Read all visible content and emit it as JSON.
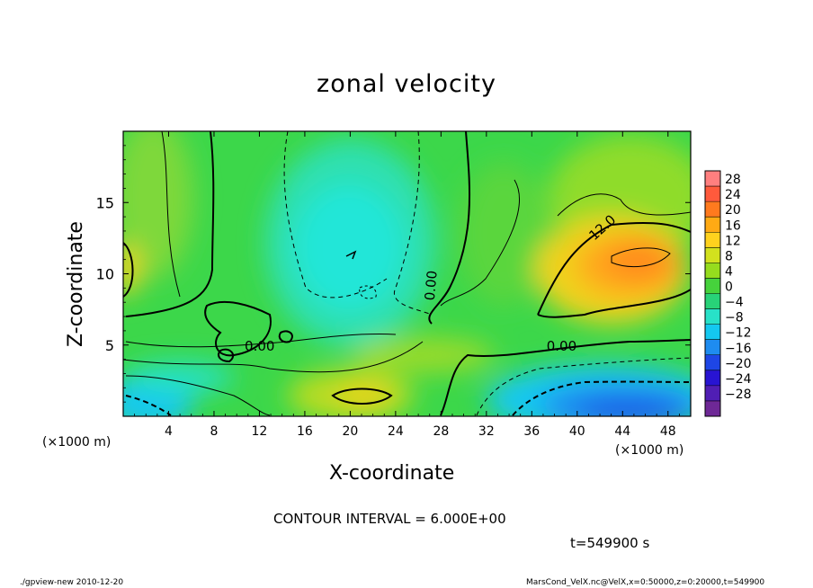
{
  "chart_data": {
    "type": "heatmap",
    "title": "zonal velocity",
    "xlabel": "X-coordinate",
    "ylabel": "Z-coordinate",
    "x_unit": "(×1000 m)",
    "xlim": [
      0,
      50
    ],
    "ylim": [
      0,
      20
    ],
    "x_ticks": [
      "4",
      "8",
      "12",
      "16",
      "20",
      "24",
      "28",
      "32",
      "36",
      "40",
      "44",
      "48"
    ],
    "x_tick_values": [
      4,
      8,
      12,
      16,
      20,
      24,
      28,
      32,
      36,
      40,
      44,
      48
    ],
    "y_ticks": [
      "5",
      "10",
      "15"
    ],
    "y_tick_values": [
      5,
      10,
      15
    ],
    "colorbar": {
      "labels": [
        "28",
        "24",
        "20",
        "16",
        "12",
        "8",
        "4",
        "0",
        "−4",
        "−8",
        "−12",
        "−16",
        "−20",
        "−24",
        "−28"
      ],
      "values": [
        28,
        24,
        20,
        16,
        12,
        8,
        4,
        0,
        -4,
        -8,
        -12,
        -16,
        -20,
        -24,
        -28
      ],
      "colors": [
        "#ff7f7f",
        "#ff5a3c",
        "#ff7a1e",
        "#ffaa14",
        "#ffd21e",
        "#d2e11e",
        "#96dc1e",
        "#46d23c",
        "#28d278",
        "#28e1c8",
        "#14c8f0",
        "#1e8cf0",
        "#1e46e6",
        "#2814d2",
        "#501eb4",
        "#6e2896"
      ]
    },
    "contour_labels": [
      {
        "text": "12.0",
        "x": 41.5,
        "y": 12.3
      },
      {
        "text": "0.00",
        "x": 27.4,
        "y": 8.1
      },
      {
        "text": "0.00",
        "x": 37.3,
        "y": 4.6
      },
      {
        "text": "0.00",
        "x": 10.7,
        "y": 4.6
      }
    ],
    "contour_interval_text": "CONTOUR INTERVAL = 6.000E+00",
    "time_text": "t=549900 s",
    "footer_left": "./gpview-new  2010-12-20",
    "footer_right": "MarsCond_VelX.nc@VelX,x=0:50000,z=0:20000,t=549900"
  }
}
